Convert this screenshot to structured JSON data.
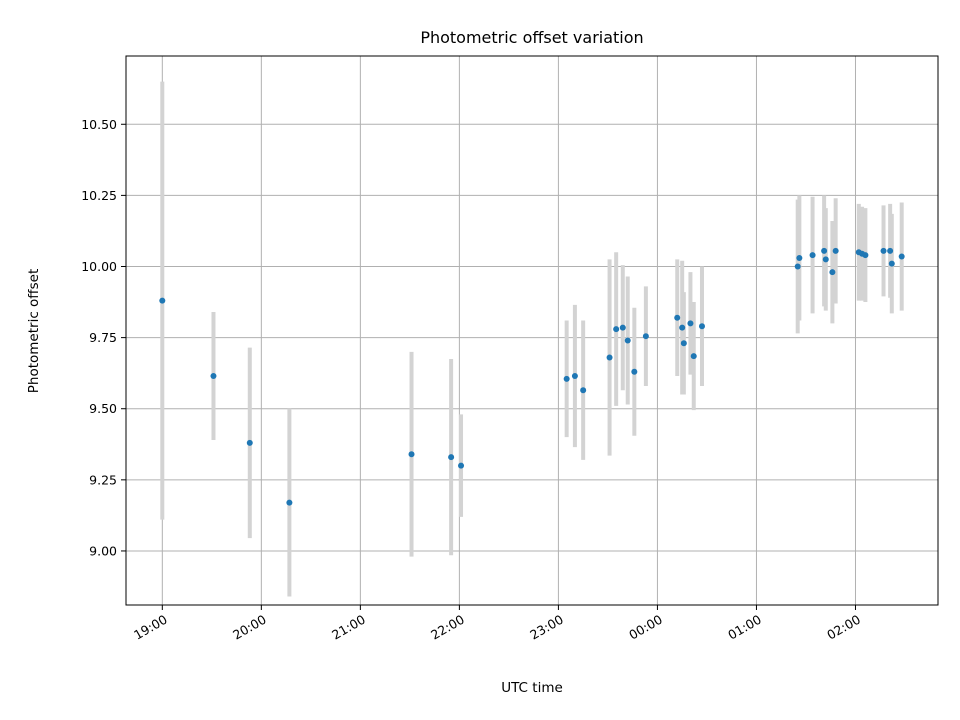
{
  "chart_data": {
    "type": "scatter",
    "title": "Photometric offset variation",
    "xlabel": "UTC time",
    "ylabel": "Photometric offset",
    "x_ticks": [
      "19:00",
      "20:00",
      "21:00",
      "22:00",
      "23:00",
      "00:00",
      "01:00",
      "02:00"
    ],
    "y_ticks": [
      "9.00",
      "9.25",
      "9.50",
      "9.75",
      "10.00",
      "10.25",
      "10.50"
    ],
    "ylim": [
      8.81,
      10.74
    ],
    "xlim": [
      "18:38",
      "02:50"
    ],
    "grid": true,
    "legend": "none",
    "points": [
      {
        "t": "19:00",
        "y": 9.88,
        "err": 0.77
      },
      {
        "t": "19:31",
        "y": 9.615,
        "err": 0.225
      },
      {
        "t": "19:53",
        "y": 9.38,
        "err": 0.335
      },
      {
        "t": "20:17",
        "y": 9.17,
        "err": 0.33
      },
      {
        "t": "21:31",
        "y": 9.34,
        "err": 0.36
      },
      {
        "t": "21:55",
        "y": 9.33,
        "err": 0.345
      },
      {
        "t": "22:01",
        "y": 9.3,
        "err": 0.18
      },
      {
        "t": "23:05",
        "y": 9.605,
        "err": 0.205
      },
      {
        "t": "23:10",
        "y": 9.615,
        "err": 0.25
      },
      {
        "t": "23:15",
        "y": 9.565,
        "err": 0.245
      },
      {
        "t": "23:31",
        "y": 9.68,
        "err": 0.345
      },
      {
        "t": "23:35",
        "y": 9.78,
        "err": 0.27
      },
      {
        "t": "23:39",
        "y": 9.785,
        "err": 0.22
      },
      {
        "t": "23:42",
        "y": 9.74,
        "err": 0.225
      },
      {
        "t": "23:46",
        "y": 9.63,
        "err": 0.225
      },
      {
        "t": "23:53",
        "y": 9.755,
        "err": 0.175
      },
      {
        "t": "00:12",
        "y": 9.82,
        "err": 0.205
      },
      {
        "t": "00:15",
        "y": 9.785,
        "err": 0.235
      },
      {
        "t": "00:16",
        "y": 9.73,
        "err": 0.18
      },
      {
        "t": "00:20",
        "y": 9.8,
        "err": 0.18
      },
      {
        "t": "00:22",
        "y": 9.685,
        "err": 0.19
      },
      {
        "t": "00:27",
        "y": 9.79,
        "err": 0.21
      },
      {
        "t": "01:25",
        "y": 10.0,
        "err": 0.235
      },
      {
        "t": "01:26",
        "y": 10.03,
        "err": 0.22
      },
      {
        "t": "01:34",
        "y": 10.04,
        "err": 0.205
      },
      {
        "t": "01:41",
        "y": 10.055,
        "err": 0.195
      },
      {
        "t": "01:42",
        "y": 10.025,
        "err": 0.18
      },
      {
        "t": "01:46",
        "y": 9.98,
        "err": 0.18
      },
      {
        "t": "01:48",
        "y": 10.055,
        "err": 0.185
      },
      {
        "t": "02:02",
        "y": 10.05,
        "err": 0.17
      },
      {
        "t": "02:04",
        "y": 10.045,
        "err": 0.165
      },
      {
        "t": "02:06",
        "y": 10.04,
        "err": 0.165
      },
      {
        "t": "02:17",
        "y": 10.055,
        "err": 0.16
      },
      {
        "t": "02:21",
        "y": 10.055,
        "err": 0.165
      },
      {
        "t": "02:22",
        "y": 10.01,
        "err": 0.175
      },
      {
        "t": "02:28",
        "y": 10.035,
        "err": 0.19
      }
    ]
  },
  "colors": {
    "marker": "#1f77b4",
    "errorbar": "#d3d3d3",
    "grid": "#b0b0b0",
    "axes": "#000000"
  }
}
